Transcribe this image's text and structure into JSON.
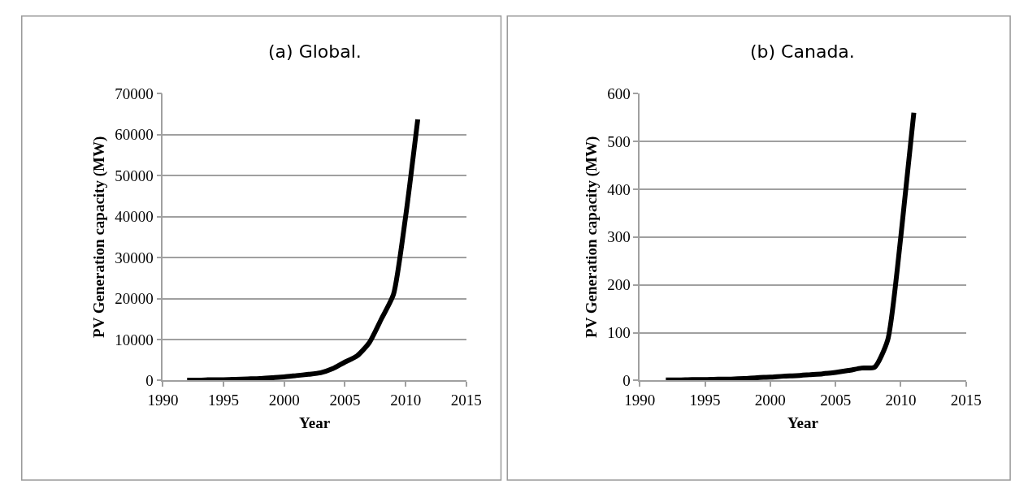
{
  "chart_data": [
    {
      "type": "line",
      "title": "(a) Global.",
      "xlabel": "Year",
      "ylabel": "PV Generation capacity (MW)",
      "x": [
        1992,
        1993,
        1994,
        1995,
        1996,
        1997,
        1998,
        1999,
        2000,
        2001,
        2002,
        2003,
        2004,
        2005,
        2006,
        2007,
        2008,
        2009,
        2010,
        2011
      ],
      "series": [
        {
          "color": "#000000",
          "values": [
            100,
            100,
            200,
            200,
            300,
            400,
            500,
            700,
            900,
            1200,
            1500,
            1900,
            2900,
            4500,
            6000,
            9200,
            15000,
            21000,
            40000,
            63700
          ]
        }
      ],
      "xlim": [
        1990,
        2015
      ],
      "xticks": [
        1990,
        1995,
        2000,
        2005,
        2010,
        2015
      ],
      "ylim": [
        0,
        70000
      ],
      "yticks": [
        0,
        10000,
        20000,
        30000,
        40000,
        50000,
        60000,
        70000
      ],
      "grid": "y",
      "marker": "none",
      "line_style": "solid"
    },
    {
      "type": "line",
      "title": "(b) Canada.",
      "xlabel": "Year",
      "ylabel": "PV Generation capacity (MW)",
      "x": [
        1992,
        1993,
        1994,
        1995,
        1996,
        1997,
        1998,
        1999,
        2000,
        2001,
        2002,
        2003,
        2004,
        2005,
        2006,
        2007,
        2008,
        2009,
        2010,
        2011
      ],
      "series": [
        {
          "color": "#000000",
          "values": [
            1,
            1,
            2,
            2,
            3,
            3,
            4,
            6,
            7,
            9,
            10,
            12,
            14,
            17,
            21,
            26,
            28,
            85,
            300,
            560
          ]
        }
      ],
      "xlim": [
        1990,
        2015
      ],
      "xticks": [
        1990,
        1995,
        2000,
        2005,
        2010,
        2015
      ],
      "ylim": [
        0,
        600
      ],
      "yticks": [
        0,
        100,
        200,
        300,
        400,
        500,
        600
      ],
      "grid": "y",
      "marker": "none",
      "line_style": "solid"
    }
  ]
}
